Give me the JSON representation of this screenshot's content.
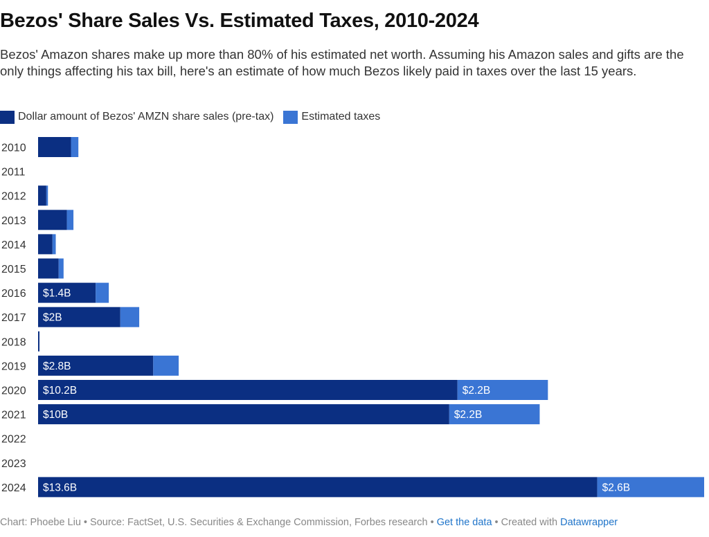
{
  "title": "Bezos' Share Sales Vs. Estimated Taxes, 2010-2024",
  "description": "Bezos' Amazon shares make up more than 80% of his estimated net worth. Assuming his Amazon sales and gifts are the only things affecting his tax bill, here's an estimate of how much Bezos likely paid in taxes over the last 15 years.",
  "colors": {
    "sales": "#0b2f82",
    "taxes": "#3a75d4"
  },
  "legend": {
    "sales_label": "Dollar amount of Bezos' AMZN share sales (pre-tax)",
    "taxes_label": "Estimated taxes"
  },
  "footer": {
    "credit": "Chart: Phoebe Liu • Source: FactSet, U.S. Securities & Exchange Commission, Forbes research • ",
    "get_data": "Get the data",
    "sep": " • Created with ",
    "datawrapper": "Datawrapper"
  },
  "chart_data": {
    "type": "bar",
    "orientation": "horizontal",
    "stacked": true,
    "title": "Bezos' Share Sales Vs. Estimated Taxes, 2010-2024",
    "categories": [
      "2010",
      "2011",
      "2012",
      "2013",
      "2014",
      "2015",
      "2016",
      "2017",
      "2018",
      "2019",
      "2020",
      "2021",
      "2022",
      "2023",
      "2024"
    ],
    "series": [
      {
        "name": "Dollar amount of Bezos' AMZN share sales (pre-tax)",
        "values": [
          0.8,
          0,
          0.2,
          0.7,
          0.35,
          0.5,
          1.4,
          2.0,
          0.03,
          2.8,
          10.2,
          10.0,
          0,
          0,
          13.6
        ],
        "labels": [
          "",
          "",
          "",
          "",
          "",
          "",
          "$1.4B",
          "$2B",
          "",
          "$2.8B",
          "$10.2B",
          "$10B",
          "",
          "",
          "$13.6B"
        ]
      },
      {
        "name": "Estimated taxes",
        "values": [
          0.18,
          0,
          0.04,
          0.16,
          0.08,
          0.12,
          0.32,
          0.46,
          0.0,
          0.62,
          2.2,
          2.2,
          0,
          0,
          2.6
        ],
        "labels": [
          "",
          "",
          "",
          "",
          "",
          "",
          "",
          "",
          "",
          "",
          "$2.2B",
          "$2.2B",
          "",
          "",
          "$2.6B"
        ]
      }
    ],
    "xlim": [
      0,
      16.2
    ],
    "xlabel": "",
    "ylabel": "",
    "grid": false,
    "legend": "top-left"
  }
}
